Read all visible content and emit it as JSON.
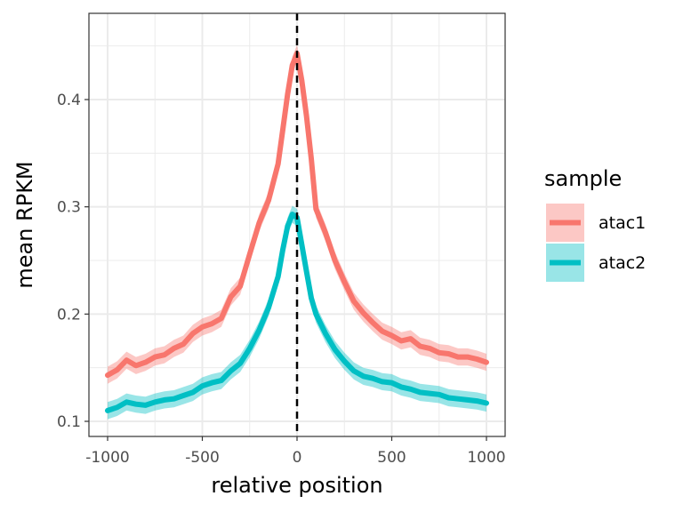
{
  "chart_data": {
    "type": "line",
    "xlabel": "relative position",
    "ylabel": "mean RPKM",
    "xlim": [
      -1000,
      1000
    ],
    "ylim": [
      0.1,
      0.45
    ],
    "x_ticks": [
      -1000,
      -500,
      0,
      500,
      1000
    ],
    "y_ticks": [
      0.1,
      0.2,
      0.3,
      0.4
    ],
    "x_tick_labels": [
      "-1000",
      "-500",
      "0",
      "500",
      "1000"
    ],
    "y_tick_labels": [
      "0.1",
      "0.2",
      "0.3",
      "0.4"
    ],
    "grid": true,
    "ribbon": true,
    "vline_at": 0,
    "vline_style": "dashed",
    "legend_title": "sample",
    "legend_position": "right",
    "x": [
      -1000,
      -950,
      -900,
      -850,
      -800,
      -750,
      -700,
      -650,
      -600,
      -550,
      -500,
      -450,
      -400,
      -350,
      -300,
      -250,
      -200,
      -150,
      -100,
      -75,
      -50,
      -25,
      0,
      25,
      50,
      75,
      100,
      150,
      200,
      250,
      300,
      350,
      400,
      450,
      500,
      550,
      600,
      650,
      700,
      750,
      800,
      850,
      900,
      950,
      1000
    ],
    "series": [
      {
        "name": "atac1",
        "color": "#F8766D",
        "values": [
          0.143,
          0.148,
          0.157,
          0.152,
          0.155,
          0.16,
          0.162,
          0.168,
          0.172,
          0.182,
          0.188,
          0.191,
          0.196,
          0.216,
          0.226,
          0.256,
          0.285,
          0.306,
          0.34,
          0.372,
          0.405,
          0.432,
          0.443,
          0.418,
          0.385,
          0.345,
          0.298,
          0.276,
          0.25,
          0.23,
          0.212,
          0.201,
          0.192,
          0.184,
          0.18,
          0.175,
          0.177,
          0.17,
          0.168,
          0.164,
          0.163,
          0.16,
          0.16,
          0.158,
          0.155
        ]
      },
      {
        "name": "atac2",
        "color": "#00BFC4",
        "values": [
          0.11,
          0.113,
          0.118,
          0.116,
          0.115,
          0.118,
          0.12,
          0.121,
          0.124,
          0.127,
          0.133,
          0.136,
          0.138,
          0.147,
          0.154,
          0.168,
          0.185,
          0.206,
          0.235,
          0.26,
          0.282,
          0.293,
          0.29,
          0.265,
          0.24,
          0.215,
          0.2,
          0.182,
          0.167,
          0.156,
          0.147,
          0.142,
          0.14,
          0.137,
          0.136,
          0.132,
          0.13,
          0.127,
          0.126,
          0.125,
          0.122,
          0.121,
          0.12,
          0.119,
          0.117
        ]
      }
    ]
  }
}
